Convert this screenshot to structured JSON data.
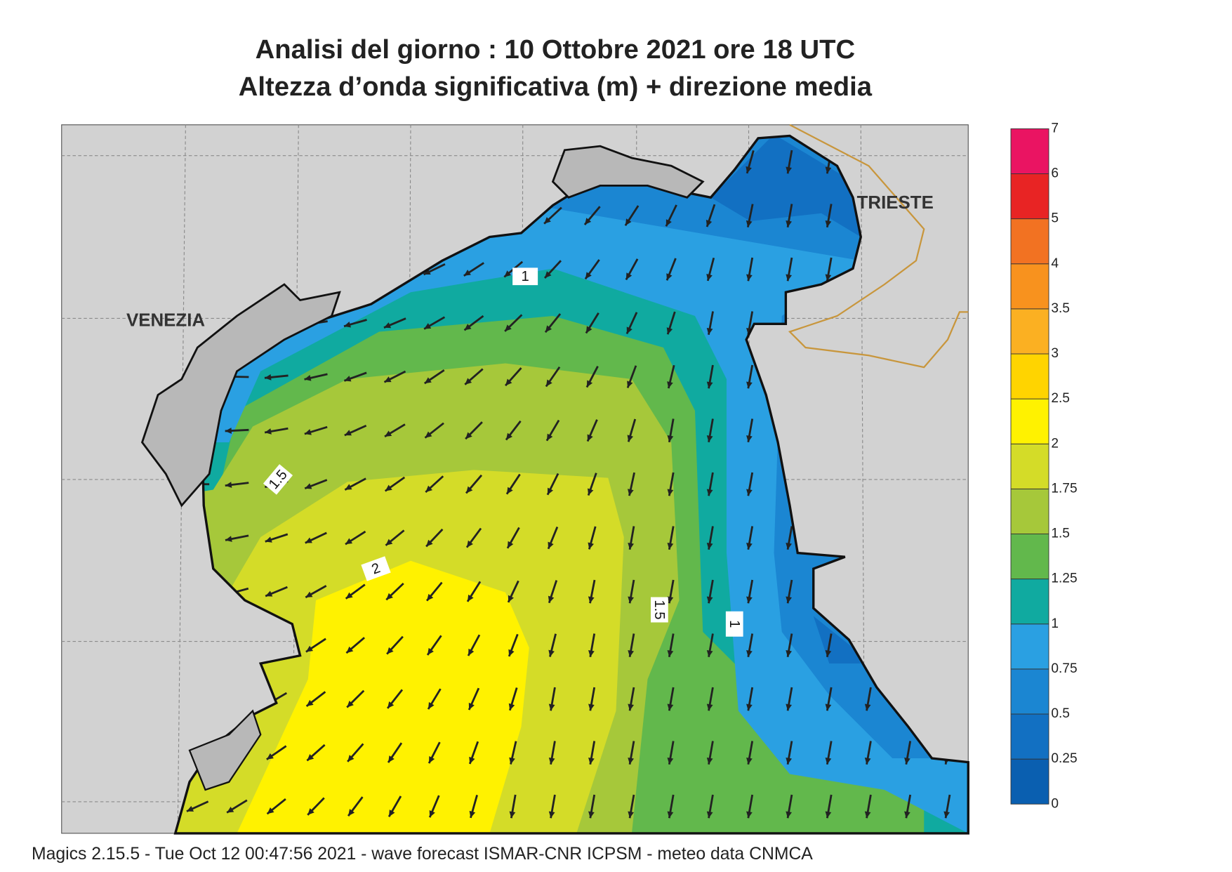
{
  "title": [
    "Analisi del giorno :  10  Ottobre  2021   ore 18 UTC",
    "Altezza d’onda significativa (m) + direzione media"
  ],
  "places": [
    "VENEZIA",
    "TRIESTE"
  ],
  "contour_labels": [
    "1",
    "1.5",
    "2",
    "1.5",
    "1"
  ],
  "colorbar": {
    "labels": [
      "0",
      "0.25",
      "0.5",
      "0.75",
      "1",
      "1.25",
      "1.5",
      "1.75",
      "2",
      "2.5",
      "3",
      "3.5",
      "4",
      "5",
      "6",
      "7"
    ],
    "colors": [
      "#0a5fb0",
      "#1270c2",
      "#1b86d2",
      "#2aa0e2",
      "#10aaa0",
      "#62b84c",
      "#a6c83a",
      "#d4dc28",
      "#fff200",
      "#ffd400",
      "#fbb022",
      "#f8921e",
      "#f27222",
      "#e82424",
      "#ea1462"
    ]
  },
  "footer": "Magics 2.15.5 - Tue Oct 12 00:47:56 2021 - wave forecast  ISMAR-CNR  ICPSM - meteo data   CNMCA"
}
